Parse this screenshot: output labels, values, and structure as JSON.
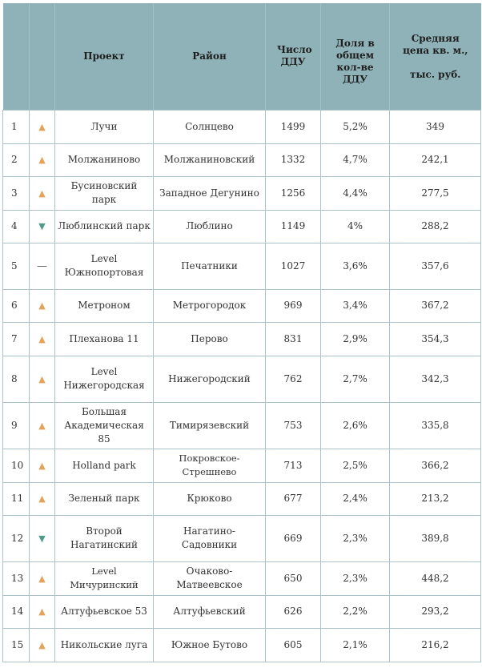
{
  "table": {
    "headers": {
      "num": "",
      "trend": "",
      "project": "Проект",
      "district": "Район",
      "count": "Число ДДУ",
      "share": "Доля в общем кол-ве ДДУ",
      "price_line1": "Средняя цена кв. м.,",
      "price_line2": "тыс. руб."
    },
    "rows": [
      {
        "num": "1",
        "trend": "up",
        "trend_glyph": "▲",
        "project": "Лучи",
        "district": "Солнцево",
        "count": "1499",
        "share": "5,2%",
        "price": "349"
      },
      {
        "num": "2",
        "trend": "up",
        "trend_glyph": "▲",
        "project": "Молжаниново",
        "district": "Молжаниновский",
        "count": "1332",
        "share": "4,7%",
        "price": "242,1"
      },
      {
        "num": "3",
        "trend": "up",
        "trend_glyph": "▲",
        "project": "Бусиновский парк",
        "district": "Западное Дегунино",
        "count": "1256",
        "share": "4,4%",
        "price": "277,5"
      },
      {
        "num": "4",
        "trend": "down",
        "trend_glyph": "▼",
        "project": "Люблинский парк",
        "district": "Люблино",
        "count": "1149",
        "share": "4%",
        "price": "288,2"
      },
      {
        "num": "5",
        "trend": "flat",
        "trend_glyph": "—",
        "project_line1": "Level",
        "project_line2": "Южнопортовая",
        "district": "Печатники",
        "count": "1027",
        "share": "3,6%",
        "price": "357,6"
      },
      {
        "num": "6",
        "trend": "up",
        "trend_glyph": "▲",
        "project": "Метроном",
        "district": "Метрогородок",
        "count": "969",
        "share": "3,4%",
        "price": "367,2"
      },
      {
        "num": "7",
        "trend": "up",
        "trend_glyph": "▲",
        "project": "Плеханова 11",
        "district": "Перово",
        "count": "831",
        "share": "2,9%",
        "price": "354,3"
      },
      {
        "num": "8",
        "trend": "up",
        "trend_glyph": "▲",
        "project_line1": "Level",
        "project_line2": "Нижегородская",
        "district": "Нижегородский",
        "count": "762",
        "share": "2,7%",
        "price": "342,3"
      },
      {
        "num": "9",
        "trend": "up",
        "trend_glyph": "▲",
        "project_line1": "Большая",
        "project_line2": "Академическая 85",
        "district": "Тимирязевский",
        "count": "753",
        "share": "2,6%",
        "price": "335,8"
      },
      {
        "num": "10",
        "trend": "up",
        "trend_glyph": "▲",
        "project": "Holland park",
        "district": "Покровское-Стрешнево",
        "count": "713",
        "share": "2,5%",
        "price": "366,2"
      },
      {
        "num": "11",
        "trend": "up",
        "trend_glyph": "▲",
        "project": "Зеленый парк",
        "district": "Крюково",
        "count": "677",
        "share": "2,4%",
        "price": "213,2"
      },
      {
        "num": "12",
        "trend": "down",
        "trend_glyph": "▼",
        "project_line1": "Второй",
        "project_line2": "Нагатинский",
        "district": "Нагатино-Садовники",
        "count": "669",
        "share": "2,3%",
        "price": "389,8"
      },
      {
        "num": "13",
        "trend": "up",
        "trend_glyph": "▲",
        "project": "Level Мичуринский",
        "district": "Очаково-Матвеевское",
        "count": "650",
        "share": "2,3%",
        "price": "448,2"
      },
      {
        "num": "14",
        "trend": "up",
        "trend_glyph": "▲",
        "project": "Алтуфьевское 53",
        "district": "Алтуфьевский",
        "count": "626",
        "share": "2,2%",
        "price": "293,2"
      },
      {
        "num": "15",
        "trend": "up",
        "trend_glyph": "▲",
        "project": "Никольские луга",
        "district": "Южное Бутово",
        "count": "605",
        "share": "2,1%",
        "price": "216,2"
      }
    ]
  },
  "colors": {
    "header_bg": "#8fb2b8",
    "border": "#a9c3c8",
    "trend_up": "#e3a35a",
    "trend_down": "#4e9b8a",
    "trend_flat": "#555555"
  }
}
